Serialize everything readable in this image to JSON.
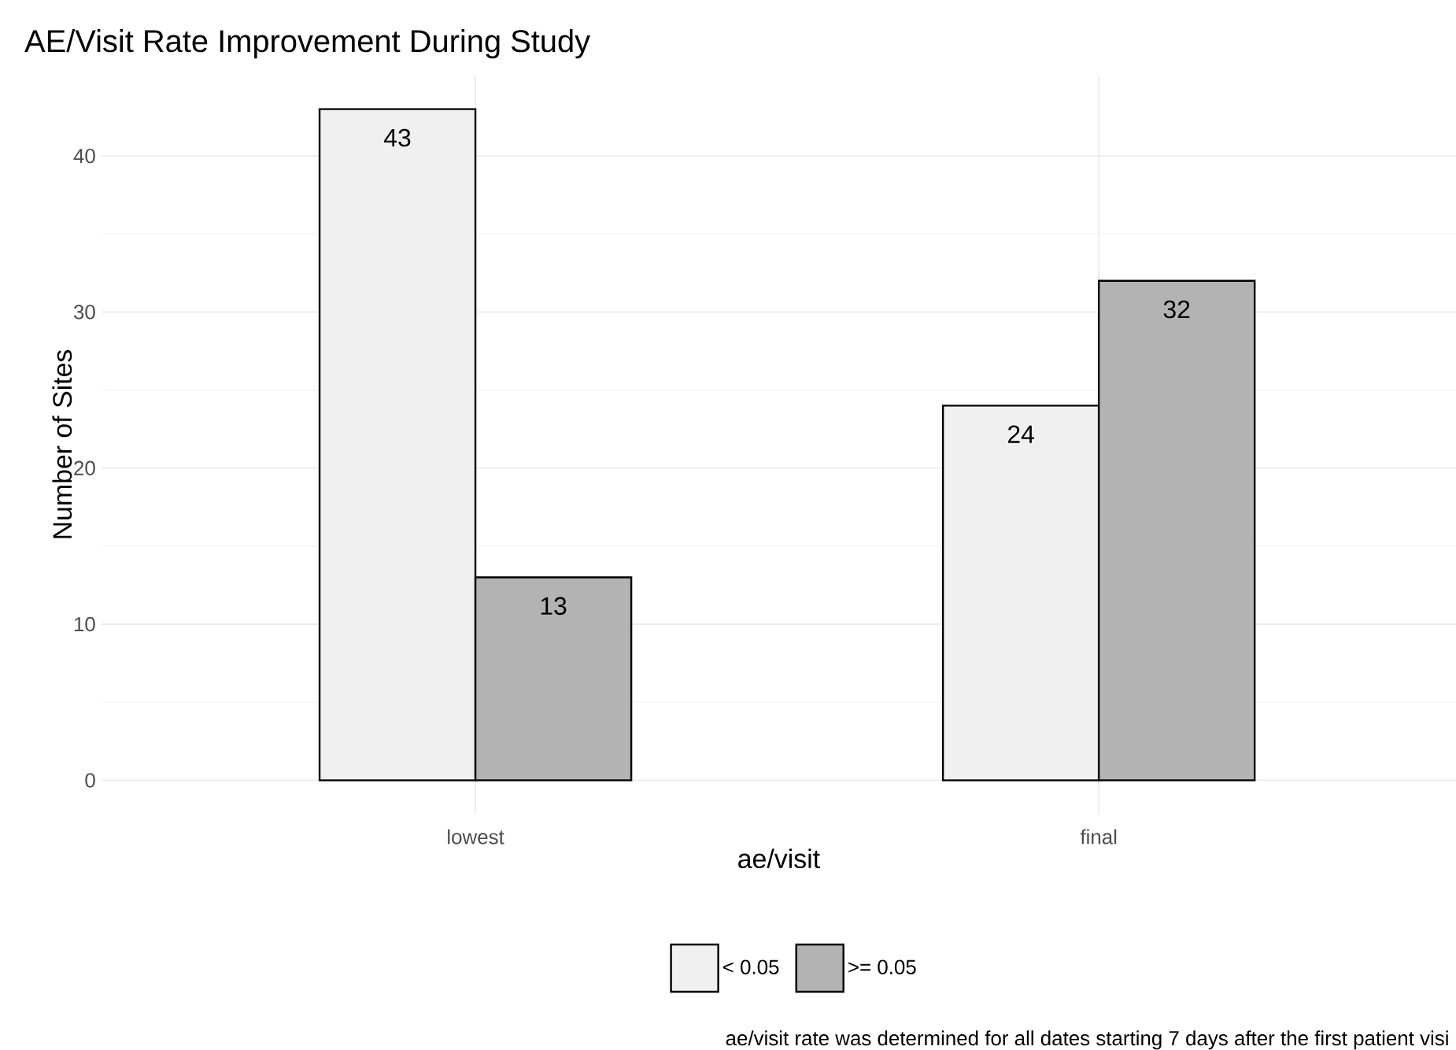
{
  "chart_data": {
    "type": "bar",
    "title": "AE/Visit Rate Improvement During Study",
    "xlabel": "ae/visit",
    "ylabel": "Number of Sites",
    "categories": [
      "lowest",
      "final"
    ],
    "series": [
      {
        "name": "< 0.05",
        "color": "#f0f0f0",
        "values": [
          43,
          24
        ]
      },
      {
        "name": ">= 0.05",
        "color": "#b3b3b3",
        "values": [
          13,
          32
        ]
      }
    ],
    "ylim": [
      -2.15,
      45.15
    ],
    "yticks": [
      0,
      10,
      20,
      30,
      40
    ],
    "grid": true,
    "legend": "bottom",
    "data_labels": true,
    "annotations": [
      "ae/visit rate was determined for all dates starting 7 days after the first patient visi"
    ]
  }
}
